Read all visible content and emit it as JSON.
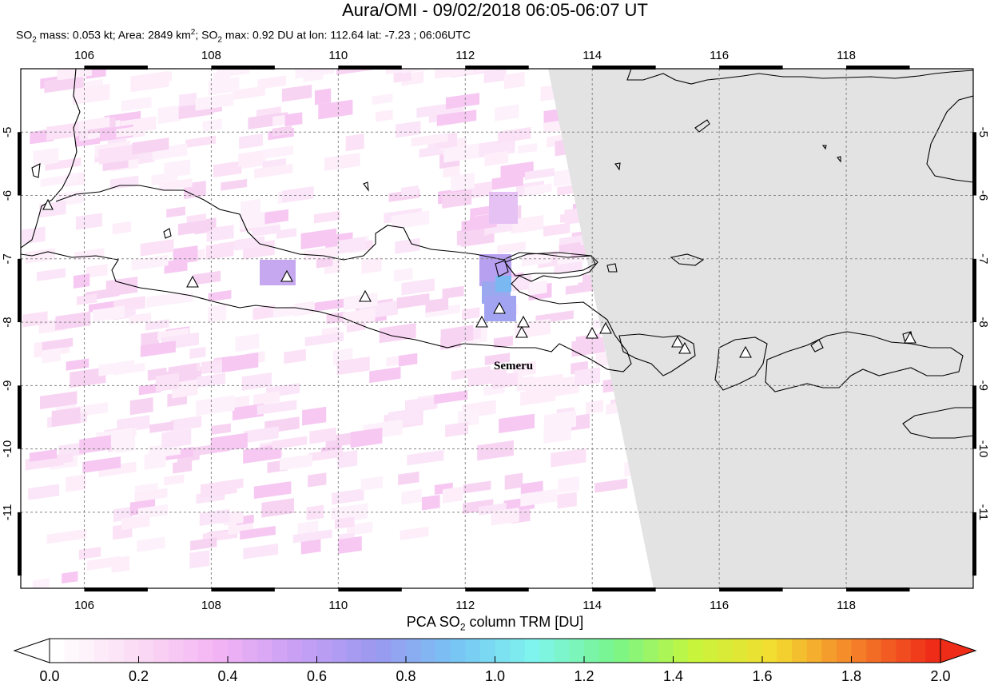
{
  "title": "Aura/OMI - 09/02/2018 06:05-06:07 UT",
  "subtitle": {
    "text_a": "SO",
    "sub_a": "2",
    "text_b": " mass: 0.053 kt; Area: 2849 km",
    "sup_b": "2",
    "text_c": "; SO",
    "sub_c": "2",
    "text_d": " max: 0.92 DU at lon: 112.64 lat: -7.23 ; 06:06UTC"
  },
  "map": {
    "lon_ticks": [
      "106",
      "108",
      "110",
      "112",
      "114",
      "116",
      "118"
    ],
    "lat_ticks": [
      "-5",
      "-6",
      "-7",
      "-8",
      "-9",
      "-10",
      "-11"
    ],
    "lon_range": [
      105,
      120
    ],
    "lat_range": [
      -12.2,
      -4.0
    ],
    "volcano_label": "Semeru",
    "no_data_color": "#e3e3e3"
  },
  "colorbar": {
    "title_a": "PCA SO",
    "title_sub": "2",
    "title_b": " column TRM [DU]",
    "ticks": [
      "0.0",
      "0.2",
      "0.4",
      "0.6",
      "0.8",
      "1.0",
      "1.2",
      "1.4",
      "1.6",
      "1.8",
      "2.0"
    ],
    "range": [
      0,
      2
    ],
    "colors": [
      "#ffffff",
      "#fbdcf4",
      "#f4b4f4",
      "#c9a0f5",
      "#9b98f0",
      "#77c4f4",
      "#7ff5ee",
      "#78f58b",
      "#c7f53b",
      "#f4dc30",
      "#f5822a",
      "#ef2c18"
    ]
  }
}
